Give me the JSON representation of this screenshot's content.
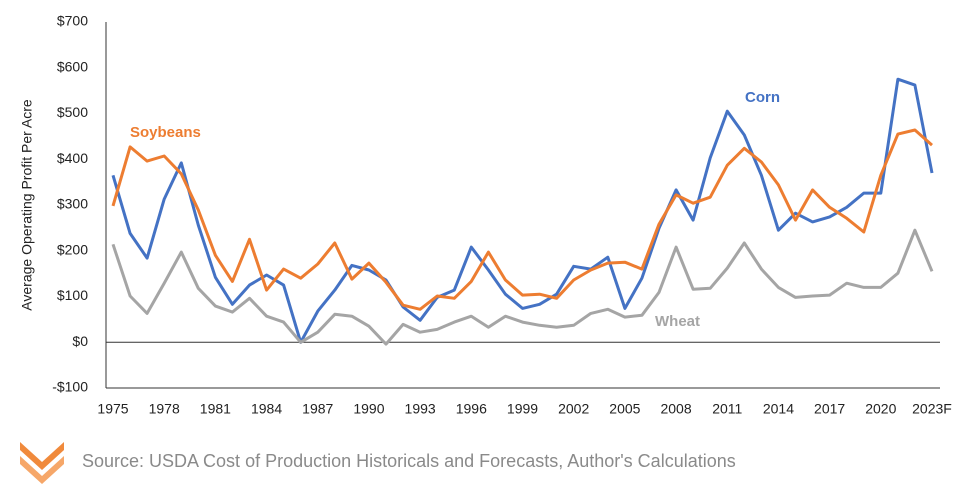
{
  "chart_data": {
    "type": "line",
    "ylabel": "Average Operating Profit Per Acre",
    "source": "Source: USDA Cost of Production Historicals and Forecasts, Author's Calculations",
    "categories": [
      "1975",
      null,
      null,
      "1978",
      null,
      null,
      "1981",
      null,
      null,
      "1984",
      null,
      null,
      "1987",
      null,
      null,
      "1990",
      null,
      null,
      "1993",
      null,
      null,
      "1996",
      null,
      null,
      "1999",
      null,
      null,
      "2002",
      null,
      null,
      "2005",
      null,
      null,
      "2008",
      null,
      null,
      "2011",
      null,
      null,
      "2014",
      null,
      null,
      "2017",
      null,
      null,
      "2020",
      null,
      null,
      "2023F"
    ],
    "ylim": [
      -100,
      700
    ],
    "yticks": [
      {
        "value": -100,
        "label": "-$100"
      },
      {
        "value": 0,
        "label": "$0"
      },
      {
        "value": 100,
        "label": "$100"
      },
      {
        "value": 200,
        "label": "$200"
      },
      {
        "value": 300,
        "label": "$300"
      },
      {
        "value": 400,
        "label": "$400"
      },
      {
        "value": 500,
        "label": "$500"
      },
      {
        "value": 600,
        "label": "$600"
      },
      {
        "value": 700,
        "label": "$700"
      }
    ],
    "series": [
      {
        "name": "Corn",
        "color": "#4472c4",
        "values": [
          365,
          238,
          184,
          313,
          392,
          256,
          142,
          83,
          125,
          147,
          125,
          0,
          68,
          114,
          168,
          158,
          136,
          77,
          48,
          98,
          114,
          208,
          158,
          105,
          74,
          83,
          105,
          166,
          160,
          186,
          74,
          140,
          249,
          333,
          267,
          403,
          505,
          453,
          365,
          245,
          282,
          263,
          274,
          295,
          326,
          326,
          575,
          562,
          370
        ]
      },
      {
        "name": "Soybeans",
        "color": "#ed7d31",
        "values": [
          298,
          427,
          396,
          407,
          368,
          289,
          190,
          133,
          225,
          114,
          160,
          140,
          171,
          217,
          138,
          173,
          131,
          81,
          72,
          101,
          96,
          133,
          197,
          136,
          103,
          105,
          96,
          136,
          158,
          173,
          175,
          160,
          258,
          322,
          304,
          317,
          387,
          424,
          394,
          344,
          267,
          333,
          295,
          271,
          241,
          365,
          455,
          464,
          431
        ]
      },
      {
        "name": "Wheat",
        "color": "#a5a5a5",
        "values": [
          214,
          101,
          63,
          129,
          197,
          118,
          79,
          66,
          96,
          57,
          44,
          0,
          22,
          61,
          57,
          35,
          -4,
          39,
          22,
          28,
          44,
          57,
          33,
          57,
          44,
          37,
          33,
          37,
          63,
          72,
          55,
          59,
          109,
          208,
          116,
          118,
          162,
          217,
          160,
          120,
          98,
          101,
          103,
          129,
          120,
          120,
          151,
          245,
          155
        ]
      }
    ]
  }
}
